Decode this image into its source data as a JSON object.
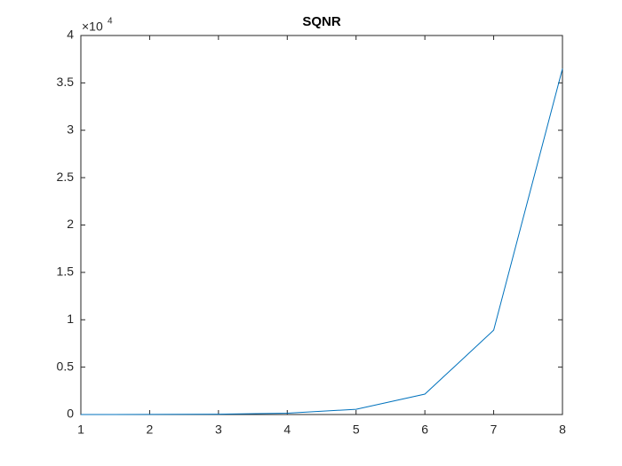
{
  "chart_data": {
    "type": "line",
    "title": "SQNR",
    "x": [
      1,
      2,
      3,
      4,
      5,
      6,
      7,
      8
    ],
    "series": [
      {
        "color": "#0072bd",
        "values": [
          0.0002,
          0.0009,
          0.0036,
          0.014,
          0.055,
          0.215,
          0.89,
          3.65
        ]
      }
    ],
    "xlim": [
      1,
      8
    ],
    "xticks": [
      1,
      2,
      3,
      4,
      5,
      6,
      7,
      8
    ],
    "ylim": [
      0,
      4
    ],
    "yticks": [
      0,
      0.5,
      1,
      1.5,
      2,
      2.5,
      3,
      3.5,
      4
    ],
    "y_multiplier": "×10",
    "y_exponent": "4",
    "grid": false
  }
}
